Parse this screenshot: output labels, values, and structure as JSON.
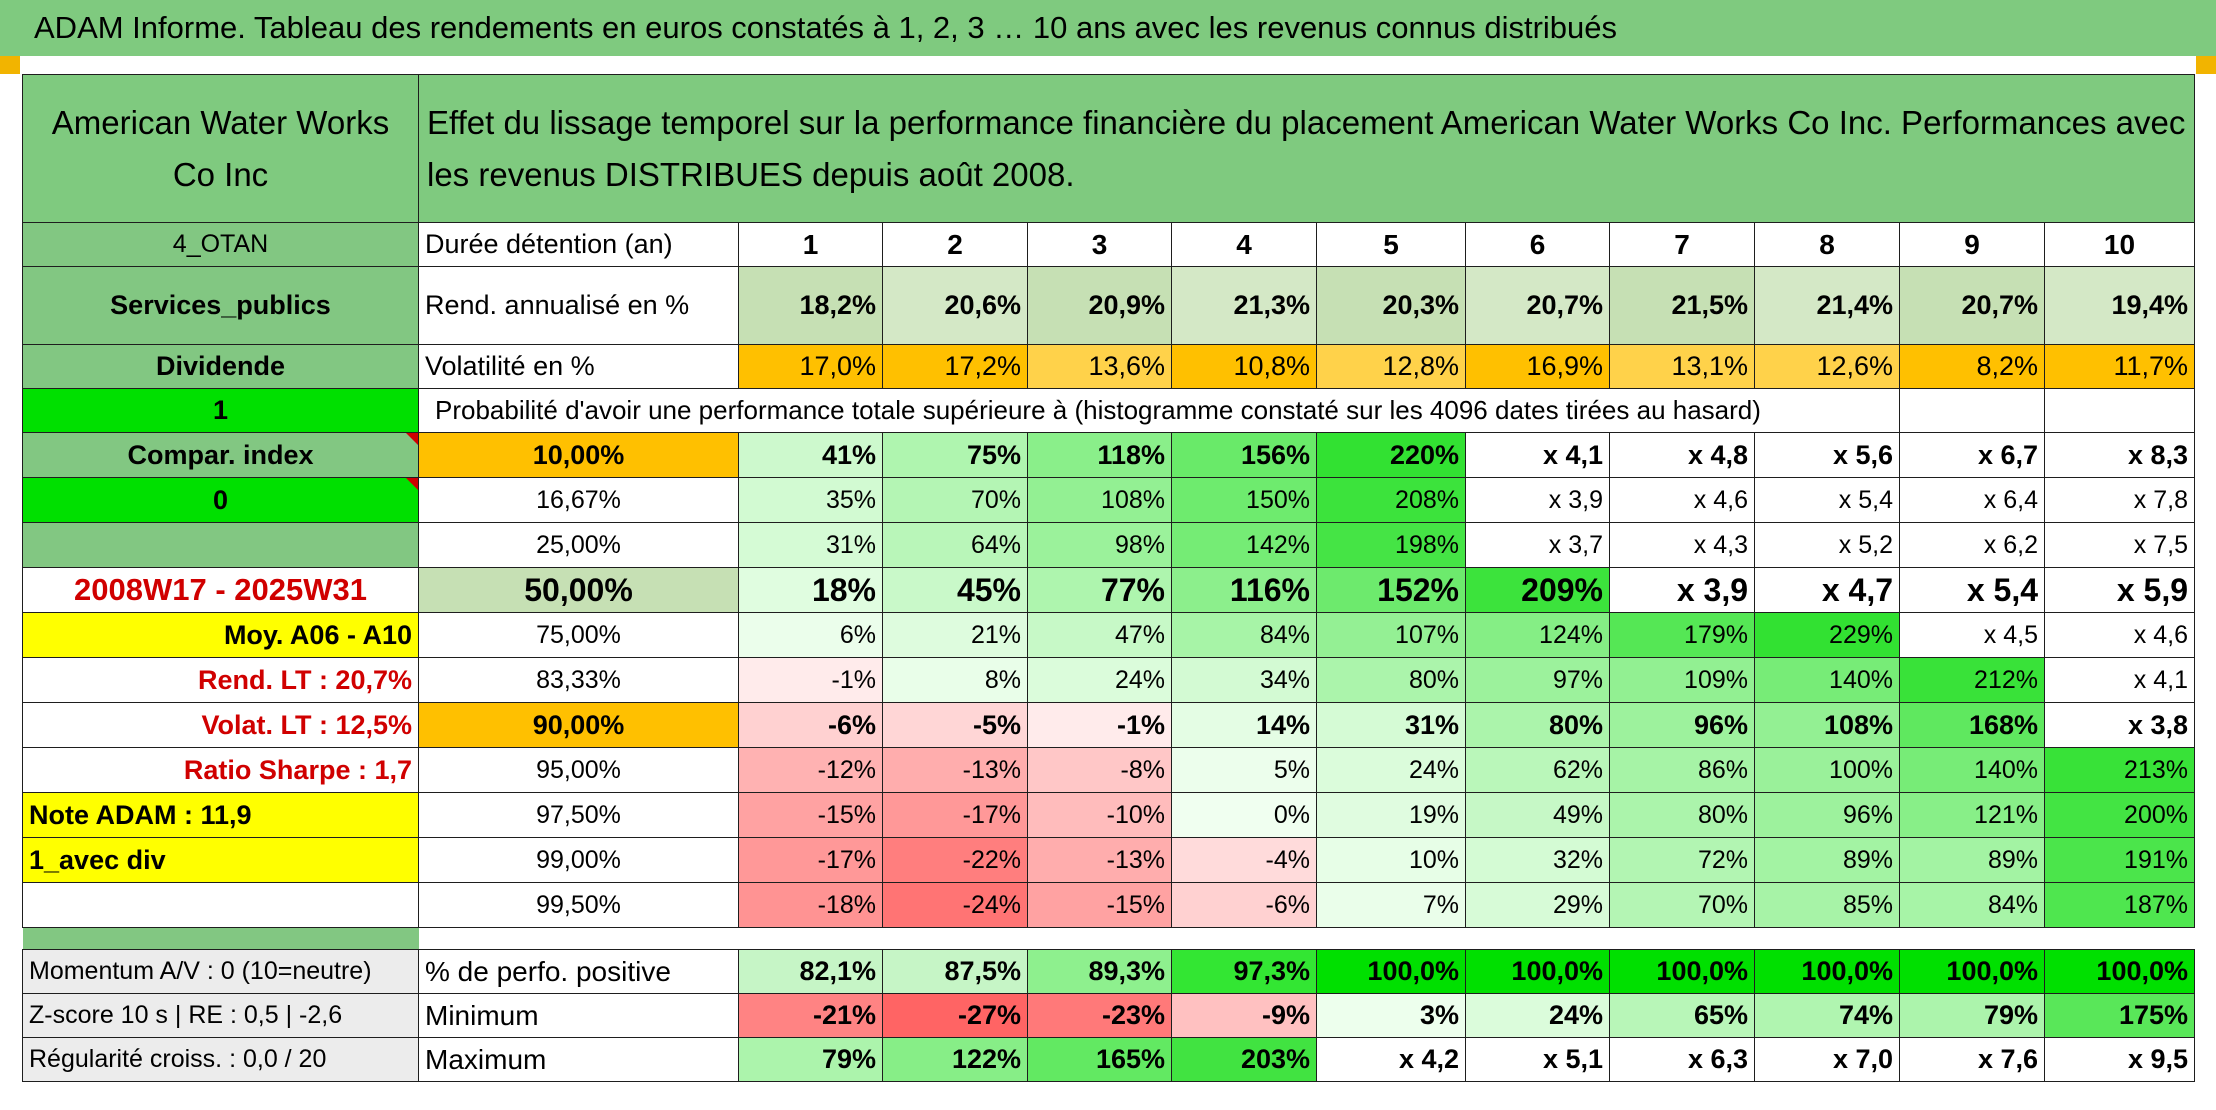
{
  "title": "ADAM Informe. Tableau des rendements en euros constatés à 1, 2, 3 … 10 ans avec les revenus connus distribués",
  "header": {
    "company": "American Water Works Co Inc",
    "description": "Effet du lissage temporel sur la performance financière du placement American Water Works Co Inc. Performances avec les revenus DISTRIBUES depuis août 2008."
  },
  "rows": {
    "duration": {
      "left": "4_OTAN",
      "label": "Durée détention (an)",
      "values": [
        "1",
        "2",
        "3",
        "4",
        "5",
        "6",
        "7",
        "8",
        "9",
        "10"
      ]
    },
    "annual": {
      "left": "Services_publics",
      "label": "Rend. annualisé en %",
      "values": [
        "18,2%",
        "20,6%",
        "20,9%",
        "21,3%",
        "20,3%",
        "20,7%",
        "21,5%",
        "21,4%",
        "20,7%",
        "19,4%"
      ]
    },
    "volatility": {
      "left": "Dividende",
      "label": "Volatilité en %",
      "values": [
        "17,0%",
        "17,2%",
        "13,6%",
        "10,8%",
        "12,8%",
        "16,9%",
        "13,1%",
        "12,6%",
        "8,2%",
        "11,7%"
      ]
    },
    "probability": {
      "left": "1",
      "label": "Probabilité d'avoir une performance totale supérieure à (histogramme constaté sur les 4096 dates tirées au hasard)"
    }
  },
  "left_labels": [
    "Compar. index",
    "0",
    "",
    "2008W17 - 2025W31",
    "Moy. A06 - A10",
    "Rend. LT :    20,7%",
    "Volat. LT :    12,5%",
    "Ratio Sharpe :    1,7",
    "Note ADAM : 11,9",
    "1_avec div",
    ""
  ],
  "pct_rows": [
    {
      "pct": "10,00%",
      "values": [
        "41%",
        "75%",
        "118%",
        "156%",
        "220%",
        "x 4,1",
        "x 4,8",
        "x 5,6",
        "x 6,7",
        "x 8,3"
      ]
    },
    {
      "pct": "16,67%",
      "values": [
        "35%",
        "70%",
        "108%",
        "150%",
        "208%",
        "x 3,9",
        "x 4,6",
        "x 5,4",
        "x 6,4",
        "x 7,8"
      ]
    },
    {
      "pct": "25,00%",
      "values": [
        "31%",
        "64%",
        "98%",
        "142%",
        "198%",
        "x 3,7",
        "x 4,3",
        "x 5,2",
        "x 6,2",
        "x 7,5"
      ]
    },
    {
      "pct": "50,00%",
      "values": [
        "18%",
        "45%",
        "77%",
        "116%",
        "152%",
        "209%",
        "x 3,9",
        "x 4,7",
        "x 5,4",
        "x 5,9"
      ]
    },
    {
      "pct": "75,00%",
      "values": [
        "6%",
        "21%",
        "47%",
        "84%",
        "107%",
        "124%",
        "179%",
        "229%",
        "x 4,5",
        "x 4,6"
      ]
    },
    {
      "pct": "83,33%",
      "values": [
        "-1%",
        "8%",
        "24%",
        "34%",
        "80%",
        "97%",
        "109%",
        "140%",
        "212%",
        "x 4,1"
      ]
    },
    {
      "pct": "90,00%",
      "values": [
        "-6%",
        "-5%",
        "-1%",
        "14%",
        "31%",
        "80%",
        "96%",
        "108%",
        "168%",
        "x 3,8"
      ]
    },
    {
      "pct": "95,00%",
      "values": [
        "-12%",
        "-13%",
        "-8%",
        "5%",
        "24%",
        "62%",
        "86%",
        "100%",
        "140%",
        "213%"
      ]
    },
    {
      "pct": "97,50%",
      "values": [
        "-15%",
        "-17%",
        "-10%",
        "0%",
        "19%",
        "49%",
        "80%",
        "96%",
        "121%",
        "200%"
      ]
    },
    {
      "pct": "99,00%",
      "values": [
        "-17%",
        "-22%",
        "-13%",
        "-4%",
        "10%",
        "32%",
        "72%",
        "89%",
        "89%",
        "191%"
      ]
    },
    {
      "pct": "99,50%",
      "values": [
        "-18%",
        "-24%",
        "-15%",
        "-6%",
        "7%",
        "29%",
        "70%",
        "85%",
        "84%",
        "187%"
      ]
    }
  ],
  "bottom_rows": [
    {
      "left": "Momentum A/V : 0 (10=neutre)",
      "label": "% de perfo. positive",
      "values": [
        "82,1%",
        "87,5%",
        "89,3%",
        "97,3%",
        "100,0%",
        "100,0%",
        "100,0%",
        "100,0%",
        "100,0%",
        "100,0%"
      ]
    },
    {
      "left": "Z-score 10 s | RE : 0,5 | -2,6",
      "label": "Minimum",
      "values": [
        "-21%",
        "-27%",
        "-23%",
        "-9%",
        "3%",
        "24%",
        "65%",
        "74%",
        "79%",
        "175%"
      ]
    },
    {
      "left": "Régularité croiss. : 0,0 / 20",
      "label": "Maximum",
      "values": [
        "79%",
        "122%",
        "165%",
        "203%",
        "x 4,2",
        "x 5,1",
        "x 6,3",
        "x 7,0",
        "x 7,6",
        "x 9,5"
      ]
    }
  ],
  "colors": {
    "header_green": "#7fca7f",
    "bright_green": "#00e000",
    "orange": "#ffc000",
    "yellow": "#ffff00",
    "label_red": "#d00000"
  }
}
